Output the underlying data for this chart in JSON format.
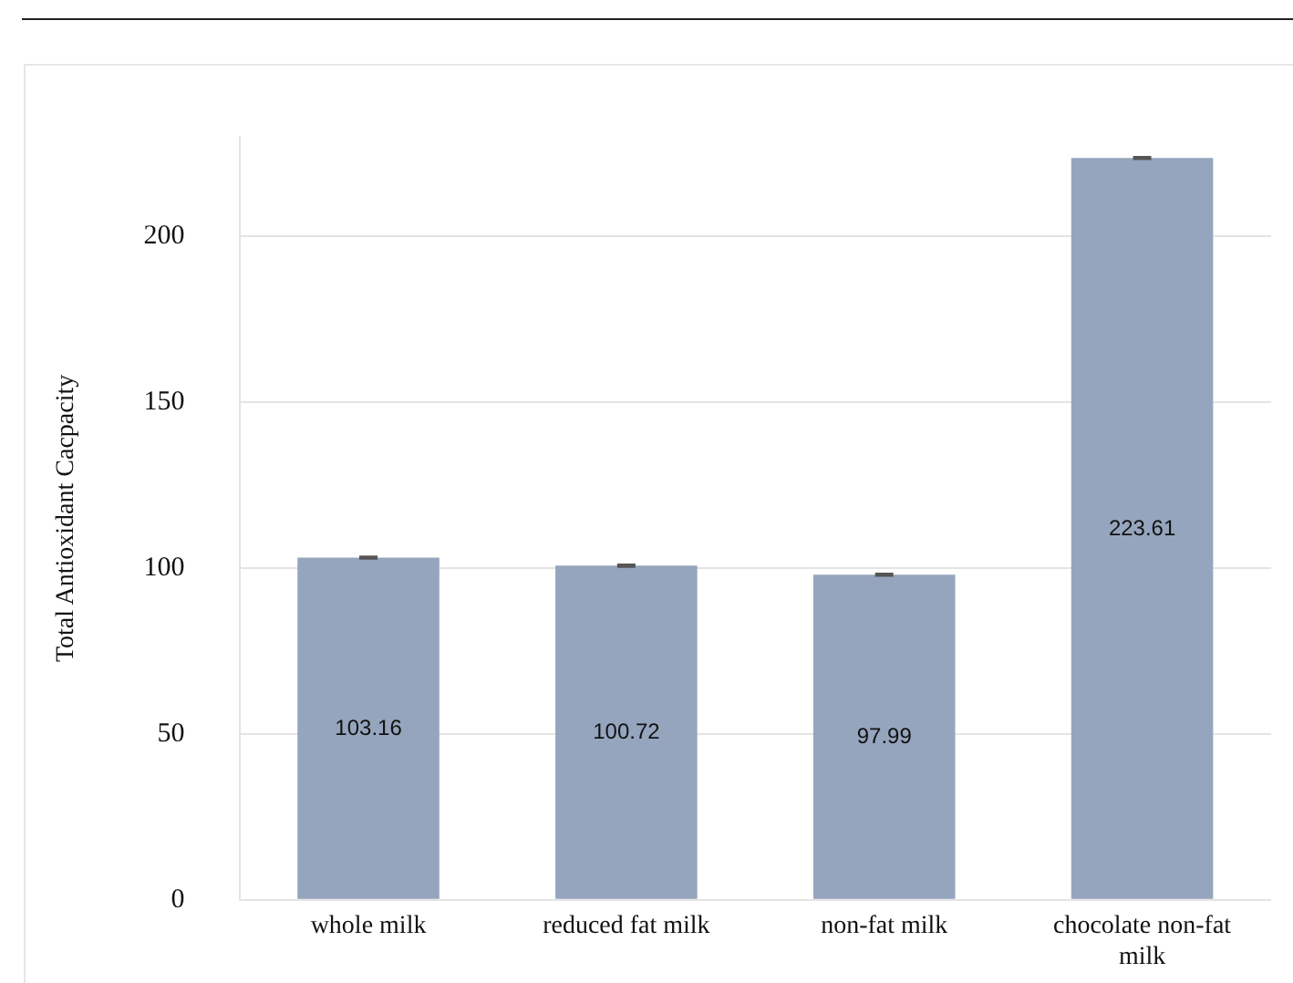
{
  "chart_data": {
    "type": "bar",
    "ylabel": "Total Antioxidant Cacpacity",
    "categories": [
      "whole milk",
      "reduced fat milk",
      "non-fat milk",
      "chocolate non-fat milk"
    ],
    "values": [
      103.16,
      100.72,
      97.99,
      223.61
    ],
    "errors": [
      0.3,
      0.3,
      0.3,
      0.3
    ],
    "color": "#95a5bd",
    "ylim": [
      0,
      230
    ],
    "yticks": [
      0,
      50,
      100,
      150,
      200
    ],
    "grid": "y",
    "data_labels": true,
    "legend": false
  }
}
